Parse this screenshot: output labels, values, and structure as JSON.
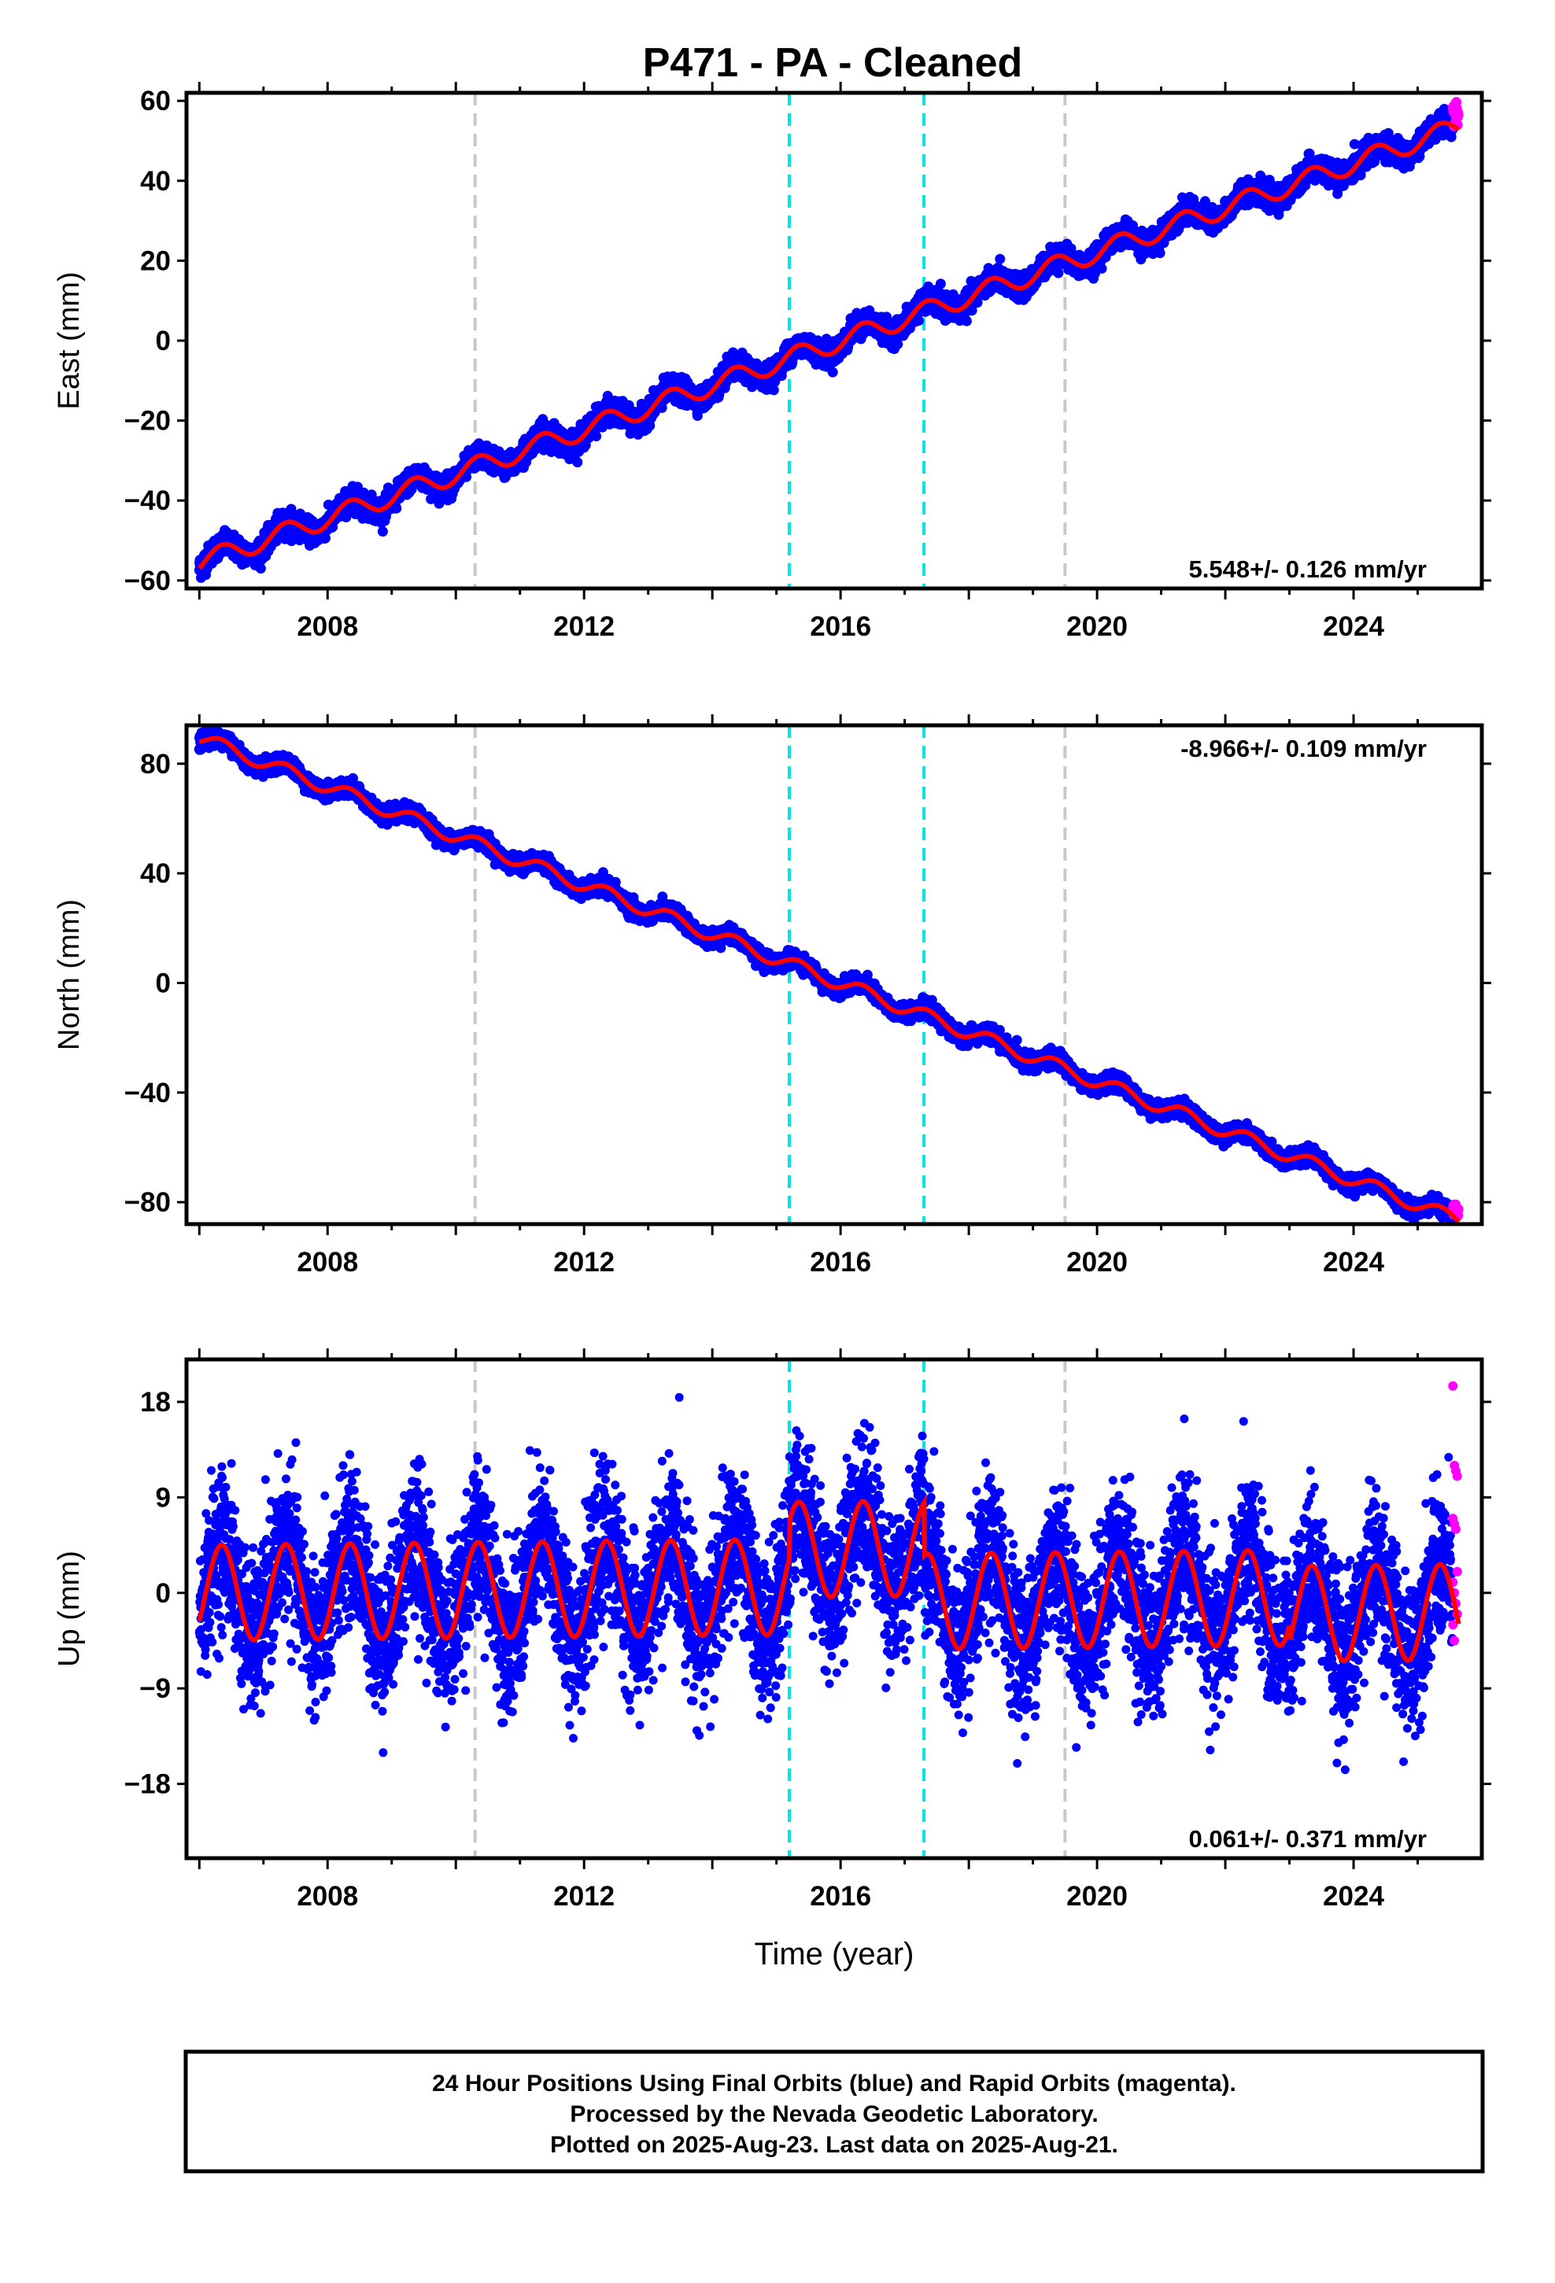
{
  "title": "P471  - PA - Cleaned",
  "colors": {
    "final": "#0000ff",
    "rapid": "#ff00ff",
    "model": "#ff0000",
    "break_gray": "#c8c8c8",
    "break_cyan": "#00e5e5"
  },
  "chart_data": [
    {
      "type": "scatter",
      "component": "east",
      "ylabel": "East (mm)",
      "xlim": [
        2005.8,
        2026.0
      ],
      "ylim": [
        -62,
        62
      ],
      "yticks": [
        -60,
        -40,
        -20,
        0,
        20,
        40,
        60
      ],
      "xticks": [
        2008,
        2012,
        2016,
        2020,
        2024
      ],
      "rate_label": "5.548+/- 0.126 mm/yr",
      "rate_position": "bottom-right",
      "trend": {
        "t0": 2006.0,
        "value_at_t0": -55.5,
        "rate_mm_per_yr": 5.548,
        "seasonal_amplitude": 2.5
      },
      "final_orbit_range": [
        2006.0,
        2025.55
      ],
      "rapid_orbit_range": [
        2025.55,
        2025.64
      ],
      "series": [
        {
          "name": "Final Orbits",
          "color": "#0000ff"
        },
        {
          "name": "Rapid Orbits",
          "color": "#ff00ff"
        }
      ],
      "breaks": [
        {
          "x": 2010.3,
          "kind": "equipment",
          "color": "#c8c8c8"
        },
        {
          "x": 2015.2,
          "kind": "earthquake",
          "color": "#00e5e5"
        },
        {
          "x": 2017.3,
          "kind": "earthquake",
          "color": "#00e5e5"
        },
        {
          "x": 2019.5,
          "kind": "equipment",
          "color": "#c8c8c8"
        }
      ]
    },
    {
      "type": "scatter",
      "component": "north",
      "ylabel": "North (mm)",
      "xlim": [
        2005.8,
        2026.0
      ],
      "ylim": [
        -88,
        94
      ],
      "yticks": [
        -80,
        -40,
        0,
        40,
        80
      ],
      "xticks": [
        2008,
        2012,
        2016,
        2020,
        2024
      ],
      "rate_label": "-8.966+/- 0.109 mm/yr",
      "rate_position": "top-right",
      "trend": {
        "t0": 2006.0,
        "value_at_t0": 89.5,
        "rate_mm_per_yr": -8.966,
        "seasonal_amplitude": 2.5
      },
      "final_orbit_range": [
        2006.0,
        2025.55
      ],
      "rapid_orbit_range": [
        2025.55,
        2025.64
      ],
      "series": [
        {
          "name": "Final Orbits",
          "color": "#0000ff"
        },
        {
          "name": "Rapid Orbits",
          "color": "#ff00ff"
        }
      ],
      "breaks": [
        {
          "x": 2010.3,
          "kind": "equipment",
          "color": "#c8c8c8"
        },
        {
          "x": 2015.2,
          "kind": "earthquake",
          "color": "#00e5e5"
        },
        {
          "x": 2017.3,
          "kind": "earthquake",
          "color": "#00e5e5"
        },
        {
          "x": 2019.5,
          "kind": "equipment",
          "color": "#c8c8c8"
        }
      ]
    },
    {
      "type": "scatter",
      "component": "up",
      "ylabel": "Up (mm)",
      "xlabel": "Time (year)",
      "xlim": [
        2005.8,
        2026.0
      ],
      "ylim": [
        -25,
        22
      ],
      "yticks": [
        -18,
        -9,
        0,
        9,
        18
      ],
      "xticks": [
        2008,
        2012,
        2016,
        2020,
        2024
      ],
      "rate_label": "0.061+/- 0.371 mm/yr",
      "rate_position": "bottom-right",
      "trend": {
        "t0": 2006.0,
        "value_at_t0": 0.0,
        "rate_mm_per_yr": 0.061,
        "seasonal_amplitude": 4.5,
        "scatter_sd_mm": 3.5
      },
      "offsets": [
        {
          "from": 2015.2,
          "to": 2017.3,
          "shift_mm": 3.5
        },
        {
          "from": 2017.3,
          "to": 2026.0,
          "shift_mm": -1.5
        },
        {
          "from": 2023.0,
          "to": 2026.0,
          "shift_mm": -1.5
        }
      ],
      "final_orbit_range": [
        2006.0,
        2025.55
      ],
      "rapid_orbit_range": [
        2025.55,
        2025.64
      ],
      "rapid_values": [
        19.5,
        12.0,
        11.5,
        11.0,
        7.0,
        6.5,
        6.0,
        2.0,
        1.0,
        0.0,
        -1.0,
        -2.0,
        -3.0,
        -4.5
      ],
      "series": [
        {
          "name": "Final Orbits",
          "color": "#0000ff"
        },
        {
          "name": "Rapid Orbits",
          "color": "#ff00ff"
        }
      ],
      "breaks": [
        {
          "x": 2010.3,
          "kind": "equipment",
          "color": "#c8c8c8"
        },
        {
          "x": 2015.2,
          "kind": "earthquake",
          "color": "#00e5e5"
        },
        {
          "x": 2017.3,
          "kind": "earthquake",
          "color": "#00e5e5"
        },
        {
          "x": 2019.5,
          "kind": "equipment",
          "color": "#c8c8c8"
        }
      ]
    }
  ],
  "footer": {
    "line1": "24 Hour Positions Using Final Orbits (blue) and Rapid Orbits (magenta).",
    "line2": "Processed by the Nevada Geodetic Laboratory.",
    "line3": "Plotted on 2025-Aug-23. Last data on 2025-Aug-21."
  }
}
